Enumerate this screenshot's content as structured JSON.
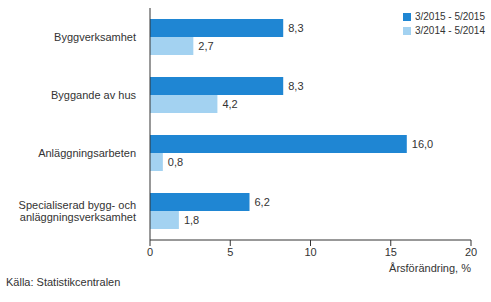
{
  "chart_data": {
    "type": "bar",
    "orientation": "horizontal",
    "categories": [
      "Byggverksamhet",
      "Byggande av hus",
      "Anläggningsarbeten",
      "Specialiserad bygg- och anläggningsverksamhet"
    ],
    "series": [
      {
        "name": "3/2015 - 5/2015",
        "color": "#1f86d3",
        "values": [
          8.3,
          8.3,
          16.0,
          6.2
        ],
        "value_labels": [
          "8,3",
          "8,3",
          "16,0",
          "6,2"
        ]
      },
      {
        "name": "3/2014 - 5/2014",
        "color": "#a3d2f1",
        "values": [
          2.7,
          4.2,
          0.8,
          1.8
        ],
        "value_labels": [
          "2,7",
          "4,2",
          "0,8",
          "1,8"
        ]
      }
    ],
    "xlabel": "Årsförändring, %",
    "annotations": [
      "Källa: Statistikcentralen"
    ],
    "xlim": [
      0,
      20
    ],
    "xticks": [
      0,
      5,
      10,
      15,
      20
    ],
    "grid": false,
    "legend": "top-right",
    "data_labels": true
  }
}
